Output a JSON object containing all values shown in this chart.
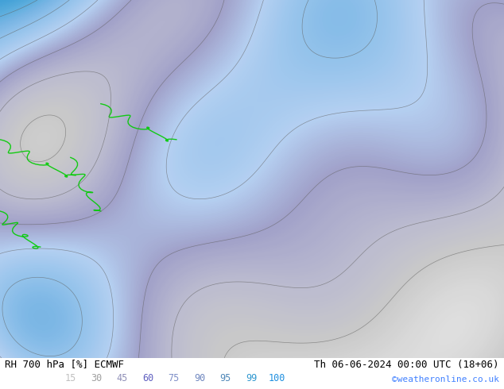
{
  "title_left": "RH 700 hPa [%] ECMWF",
  "title_right": "Th 06-06-2024 00:00 UTC (18+06)",
  "credit": "©weatheronline.co.uk",
  "colorbar_values": [
    15,
    30,
    45,
    60,
    75,
    90,
    95,
    99,
    100
  ],
  "colorbar_colors": [
    "#d4d4d4",
    "#b8b8b8",
    "#9c9cc8",
    "#8080c0",
    "#6464b8",
    "#4848b0",
    "#2c6464",
    "#00c8ff",
    "#0080ff"
  ],
  "bg_color": "#ffffff",
  "fig_width": 6.34,
  "fig_height": 4.9,
  "dpi": 100,
  "map_bg_color": "#c8c8c8",
  "bottom_text_color": "#6060a0",
  "title_color": "#000000",
  "credit_color": "#4080ff"
}
